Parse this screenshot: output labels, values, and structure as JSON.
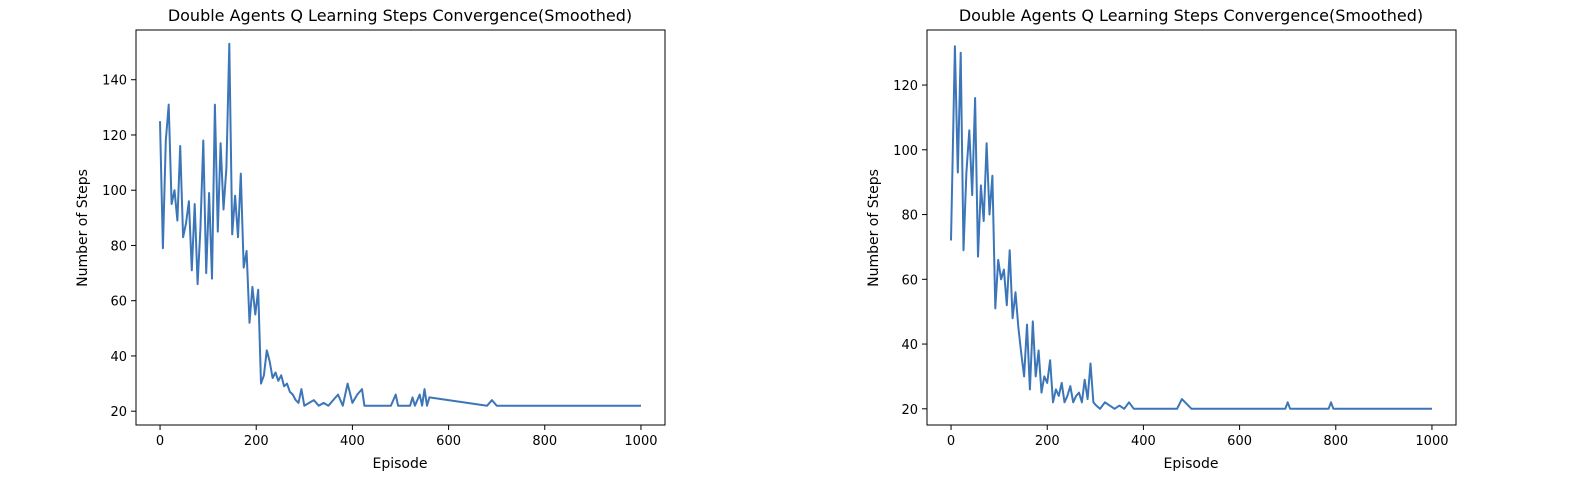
{
  "chart_data": [
    {
      "type": "line",
      "title": "Double Agents Q Learning Steps Convergence(Smoothed)",
      "xlabel": "Episode",
      "ylabel": "Number of Steps",
      "xlim": [
        -50,
        1050
      ],
      "ylim": [
        15,
        158
      ],
      "xticks": [
        0,
        200,
        400,
        600,
        800,
        1000
      ],
      "yticks": [
        20,
        40,
        60,
        80,
        100,
        120,
        140
      ],
      "grid": false,
      "legend": "none",
      "color": "#3c76b8",
      "series": [
        {
          "x": [
            0,
            6,
            12,
            18,
            24,
            30,
            36,
            42,
            48,
            54,
            60,
            66,
            72,
            78,
            84,
            90,
            96,
            102,
            108,
            114,
            120,
            126,
            132,
            138,
            144,
            150,
            156,
            162,
            168,
            174,
            180,
            186,
            192,
            198,
            204,
            210,
            216,
            222,
            228,
            234,
            240,
            246,
            252,
            258,
            264,
            270,
            276,
            282,
            288,
            294,
            300,
            310,
            320,
            330,
            340,
            350,
            360,
            370,
            380,
            390,
            400,
            410,
            420,
            425,
            430,
            480,
            490,
            495,
            500,
            520,
            525,
            530,
            540,
            545,
            550,
            555,
            560,
            680,
            690,
            700,
            1000
          ],
          "y": [
            125,
            79,
            118,
            131,
            95,
            100,
            89,
            116,
            83,
            88,
            96,
            71,
            95,
            66,
            86,
            118,
            70,
            99,
            68,
            131,
            85,
            117,
            93,
            108,
            153,
            84,
            98,
            83,
            106,
            72,
            78,
            52,
            65,
            55,
            64,
            30,
            33,
            42,
            38,
            32,
            34,
            31,
            33,
            29,
            30,
            27,
            26,
            24,
            23,
            28,
            22,
            23,
            24,
            22,
            23,
            22,
            24,
            26,
            22,
            30,
            23,
            26,
            28,
            22,
            22,
            22,
            26,
            22,
            22,
            22,
            25,
            22,
            26,
            22,
            28,
            22,
            25,
            22,
            24,
            22,
            22
          ]
        }
      ]
    },
    {
      "type": "line",
      "title": "Double Agents Q Learning Steps Convergence(Smoothed)",
      "xlabel": "Episode",
      "ylabel": "Number of Steps",
      "xlim": [
        -50,
        1050
      ],
      "ylim": [
        15,
        137
      ],
      "xticks": [
        0,
        200,
        400,
        600,
        800,
        1000
      ],
      "yticks": [
        20,
        40,
        60,
        80,
        100,
        120
      ],
      "grid": false,
      "legend": "none",
      "color": "#3c76b8",
      "series": [
        {
          "x": [
            0,
            8,
            14,
            20,
            26,
            32,
            38,
            44,
            50,
            56,
            62,
            68,
            74,
            80,
            86,
            92,
            98,
            104,
            110,
            116,
            122,
            128,
            134,
            140,
            146,
            152,
            158,
            164,
            170,
            176,
            182,
            188,
            194,
            200,
            206,
            212,
            218,
            224,
            230,
            236,
            242,
            248,
            254,
            260,
            266,
            272,
            278,
            284,
            290,
            296,
            302,
            310,
            320,
            330,
            340,
            350,
            360,
            370,
            380,
            390,
            400,
            410,
            420,
            430,
            440,
            450,
            460,
            470,
            480,
            500,
            510,
            520,
            560,
            570,
            580,
            695,
            700,
            705,
            785,
            790,
            795,
            1000
          ],
          "y": [
            72,
            132,
            93,
            130,
            69,
            93,
            106,
            86,
            116,
            67,
            89,
            78,
            102,
            80,
            92,
            51,
            66,
            60,
            63,
            52,
            69,
            48,
            56,
            45,
            37,
            30,
            46,
            26,
            47,
            30,
            38,
            25,
            30,
            28,
            35,
            22,
            26,
            24,
            28,
            22,
            24,
            27,
            22,
            24,
            25,
            22,
            29,
            23,
            34,
            22,
            21,
            20,
            22,
            21,
            20,
            21,
            20,
            22,
            20,
            20,
            20,
            20,
            20,
            20,
            20,
            20,
            20,
            20,
            23,
            20,
            20,
            20,
            20,
            20,
            20,
            20,
            22,
            20,
            20,
            22,
            20,
            20
          ]
        }
      ]
    }
  ]
}
